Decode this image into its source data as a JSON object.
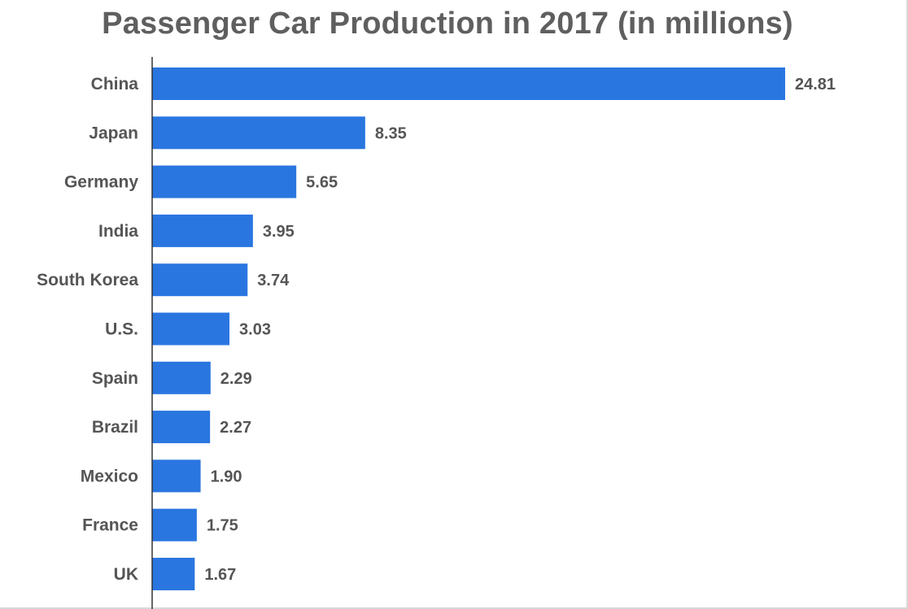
{
  "chart_data": {
    "type": "bar",
    "orientation": "horizontal",
    "title": "Passenger Car Production in 2017 (in millions)",
    "xlabel": "",
    "ylabel": "",
    "categories": [
      "China",
      "Japan",
      "Germany",
      "India",
      "South Korea",
      "U.S.",
      "Spain",
      "Brazil",
      "Mexico",
      "France",
      "UK"
    ],
    "values": [
      24.81,
      8.35,
      5.65,
      3.95,
      3.74,
      3.03,
      2.29,
      2.27,
      1.9,
      1.75,
      1.67
    ],
    "value_labels": [
      "24.81",
      "8.35",
      "5.65",
      "3.95",
      "3.74",
      "3.03",
      "2.29",
      "2.27",
      "1.90",
      "1.75",
      "1.67"
    ],
    "xlim": [
      0,
      24.81
    ],
    "grid": false,
    "legend": "none",
    "bar_color": "#2a76e0"
  }
}
